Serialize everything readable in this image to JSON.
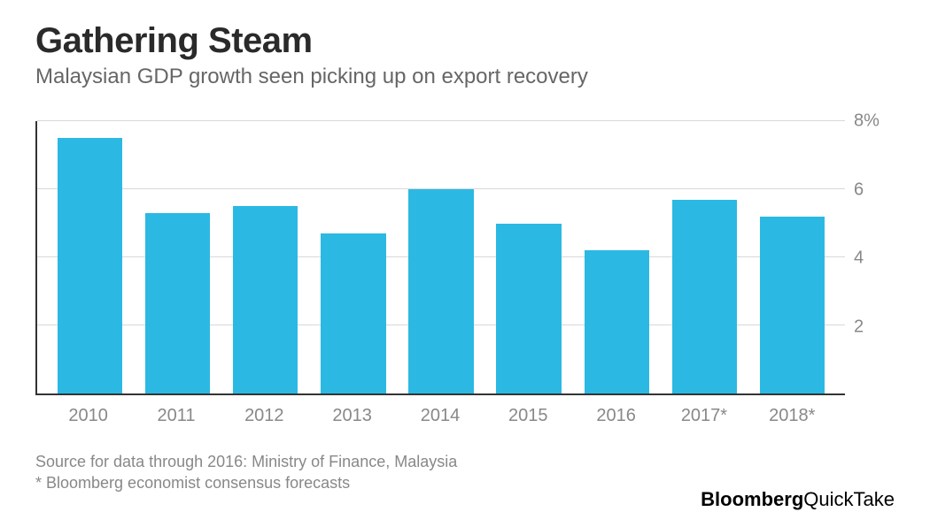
{
  "title": "Gathering Steam",
  "subtitle": "Malaysian GDP growth seen picking up on export recovery",
  "chart": {
    "type": "bar",
    "categories": [
      "2010",
      "2011",
      "2012",
      "2013",
      "2014",
      "2015",
      "2016",
      "2017*",
      "2018*"
    ],
    "values": [
      7.5,
      5.3,
      5.5,
      4.7,
      6.0,
      5.0,
      4.2,
      5.7,
      5.2
    ],
    "bar_color": "#2bb9e3",
    "background_color": "#ffffff",
    "grid_color": "#d8d8d8",
    "axis_color": "#333333",
    "ylim": [
      0,
      8
    ],
    "yticks": [
      2,
      4,
      6,
      8
    ],
    "ytick_labels": [
      "2",
      "4",
      "6",
      "8%"
    ],
    "bar_width_pct": 74,
    "title_fontsize": 40,
    "title_color": "#2a2a2a",
    "subtitle_fontsize": 24,
    "subtitle_color": "#666666",
    "tick_fontsize": 20,
    "tick_color": "#888888"
  },
  "footnotes": {
    "line1": "Source for data through 2016: Ministry of Finance, Malaysia",
    "line2": "* Bloomberg economist consensus forecasts",
    "fontsize": 18,
    "color": "#888888"
  },
  "brand": {
    "bold": "Bloomberg",
    "light": "QuickTake",
    "fontsize": 22,
    "color": "#000000"
  }
}
